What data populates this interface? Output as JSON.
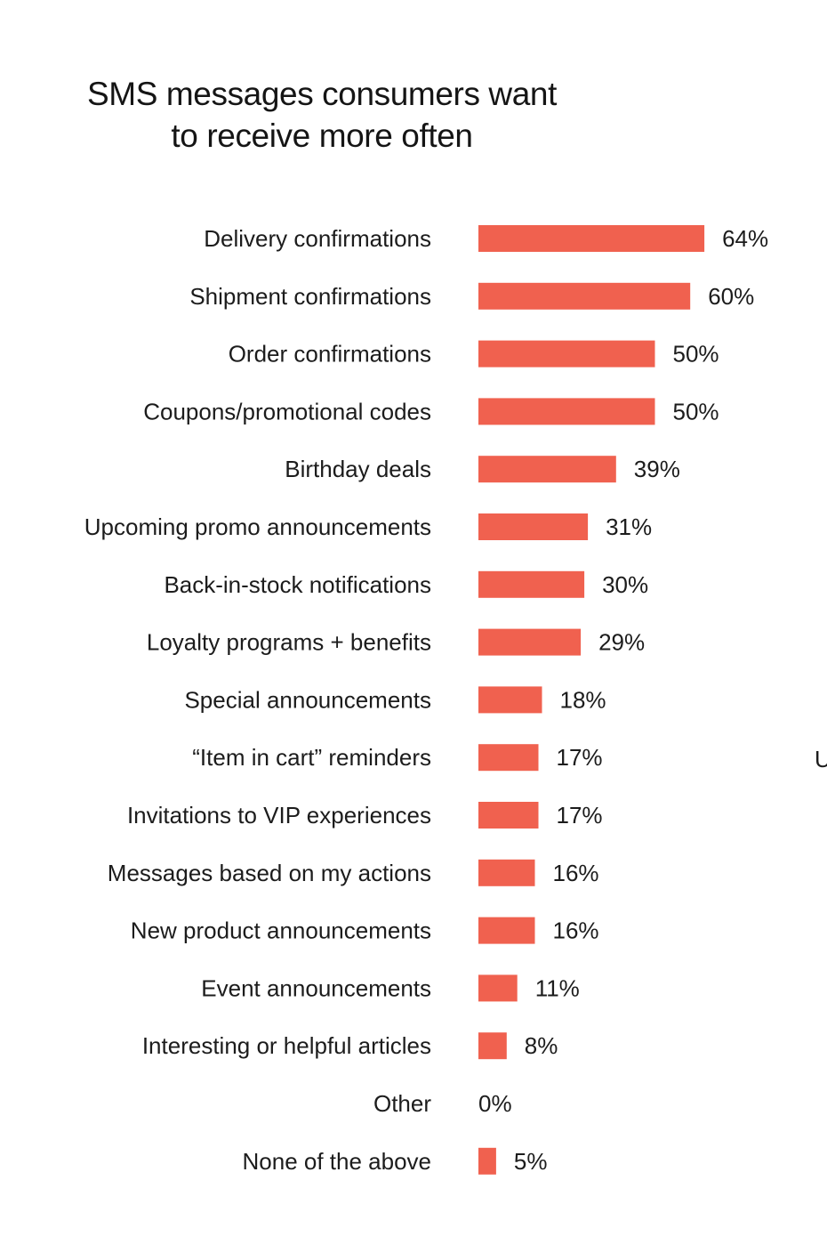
{
  "chart_data": {
    "type": "bar",
    "orientation": "horizontal",
    "title": "SMS messages consumers want to receive more often",
    "title_lines": [
      "SMS messages consumers want",
      "to receive more often"
    ],
    "categories": [
      "Delivery confirmations",
      "Shipment confirmations",
      "Order confirmations",
      "Coupons/promotional codes",
      "Birthday deals",
      "Upcoming promo announcements",
      "Back-in-stock notifications",
      "Loyalty programs + benefits",
      "Special announcements",
      "“Item in cart” reminders",
      "Invitations to VIP experiences",
      "Messages based on my actions",
      "New product announcements",
      "Event announcements",
      "Interesting or helpful articles",
      "Other",
      "None of the above"
    ],
    "values": [
      64,
      60,
      50,
      50,
      39,
      31,
      30,
      29,
      18,
      17,
      17,
      16,
      16,
      11,
      8,
      0,
      5
    ],
    "value_labels": [
      "64%",
      "60%",
      "50%",
      "50%",
      "39%",
      "31%",
      "30%",
      "29%",
      "18%",
      "17%",
      "17%",
      "16%",
      "16%",
      "11%",
      "8%",
      "0%",
      "5%"
    ],
    "unit": "%",
    "xlabel": "",
    "ylabel": "",
    "xlim": [
      0,
      100
    ],
    "grid": false,
    "legend": "none",
    "bar_color": "#f0614f",
    "text_color": "#1c1c1c",
    "edge_glyph": "U"
  }
}
